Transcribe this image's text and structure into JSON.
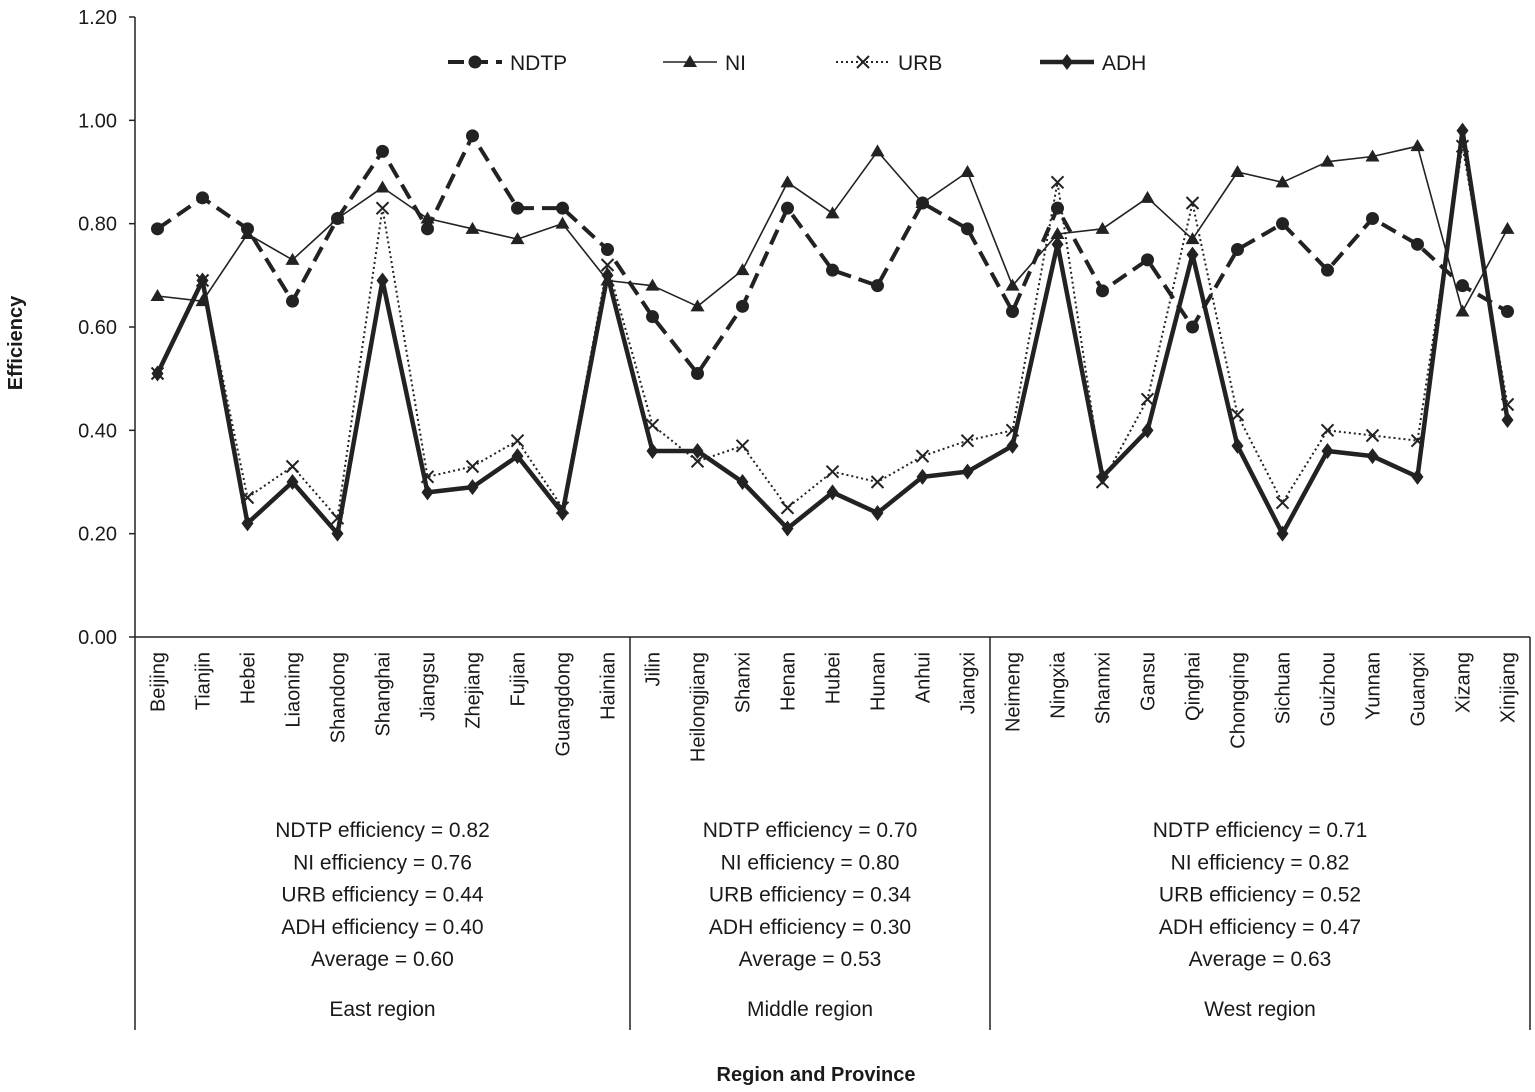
{
  "chart_data": {
    "type": "line",
    "title": "",
    "xlabel": "Region and Province",
    "ylabel": "Efficiency",
    "ylim": [
      0,
      1.2
    ],
    "yticks": [
      "0.00",
      "0.20",
      "0.40",
      "0.60",
      "0.80",
      "1.00",
      "1.20"
    ],
    "grid": false,
    "legend_position": "top-center",
    "categories": [
      "Beijing",
      "Tianjin",
      "Hebei",
      "Liaoning",
      "Shandong",
      "Shanghai",
      "Jiangsu",
      "Zhejiang",
      "Fujian",
      "Guangdong",
      "Hainian",
      "Jilin",
      "Heilongjiang",
      "Shanxi",
      "Henan",
      "Hubei",
      "Hunan",
      "Anhui",
      "Jiangxi",
      "Neimeng",
      "Ningxia",
      "Shannxi",
      "Gansu",
      "Qinghai",
      "Chongqing",
      "Sichuan",
      "Guizhou",
      "Yunnan",
      "Guangxi",
      "Xizang",
      "Xinjiang"
    ],
    "series": [
      {
        "name": "NDTP",
        "style": "dashed-circle",
        "values": [
          0.79,
          0.85,
          0.79,
          0.65,
          0.81,
          0.94,
          0.79,
          0.97,
          0.83,
          0.83,
          0.75,
          0.62,
          0.51,
          0.64,
          0.83,
          0.71,
          0.68,
          0.84,
          0.79,
          0.63,
          0.83,
          0.67,
          0.73,
          0.6,
          0.75,
          0.8,
          0.71,
          0.81,
          0.76,
          0.68,
          0.63
        ]
      },
      {
        "name": "NI",
        "style": "solid-thin-triangle",
        "values": [
          0.66,
          0.65,
          0.78,
          0.73,
          0.81,
          0.87,
          0.81,
          0.79,
          0.77,
          0.8,
          0.69,
          0.68,
          0.64,
          0.71,
          0.88,
          0.82,
          0.94,
          0.84,
          0.9,
          0.68,
          0.78,
          0.79,
          0.85,
          0.77,
          0.9,
          0.88,
          0.92,
          0.93,
          0.95,
          0.63,
          0.79
        ]
      },
      {
        "name": "URB",
        "style": "dotted-x",
        "values": [
          0.51,
          0.69,
          0.27,
          0.33,
          0.23,
          0.83,
          0.31,
          0.33,
          0.38,
          0.25,
          0.72,
          0.41,
          0.34,
          0.37,
          0.25,
          0.32,
          0.3,
          0.35,
          0.38,
          0.4,
          0.88,
          0.3,
          0.46,
          0.84,
          0.43,
          0.26,
          0.4,
          0.39,
          0.38,
          0.95,
          0.45
        ]
      },
      {
        "name": "ADH",
        "style": "solid-thick-diamond",
        "values": [
          0.51,
          0.69,
          0.22,
          0.3,
          0.2,
          0.69,
          0.28,
          0.29,
          0.35,
          0.24,
          0.7,
          0.36,
          0.36,
          0.3,
          0.21,
          0.28,
          0.24,
          0.31,
          0.32,
          0.37,
          0.76,
          0.31,
          0.4,
          0.74,
          0.37,
          0.2,
          0.36,
          0.35,
          0.31,
          0.98,
          0.42
        ]
      }
    ],
    "regions": [
      {
        "name": "East region",
        "count": 11,
        "stats": [
          "NDTP efficiency = 0.82",
          "NI efficiency = 0.76",
          "URB efficiency = 0.44",
          "ADH efficiency = 0.40",
          "Average = 0.60"
        ]
      },
      {
        "name": "Middle region",
        "count": 8,
        "stats": [
          "NDTP efficiency = 0.70",
          "NI efficiency = 0.80",
          "URB efficiency = 0.34",
          "ADH efficiency = 0.30",
          "Average = 0.53"
        ]
      },
      {
        "name": "West region",
        "count": 12,
        "stats": [
          "NDTP efficiency = 0.71",
          "NI efficiency = 0.82",
          "URB efficiency = 0.52",
          "ADH efficiency = 0.47",
          "Average = 0.63"
        ]
      }
    ]
  }
}
